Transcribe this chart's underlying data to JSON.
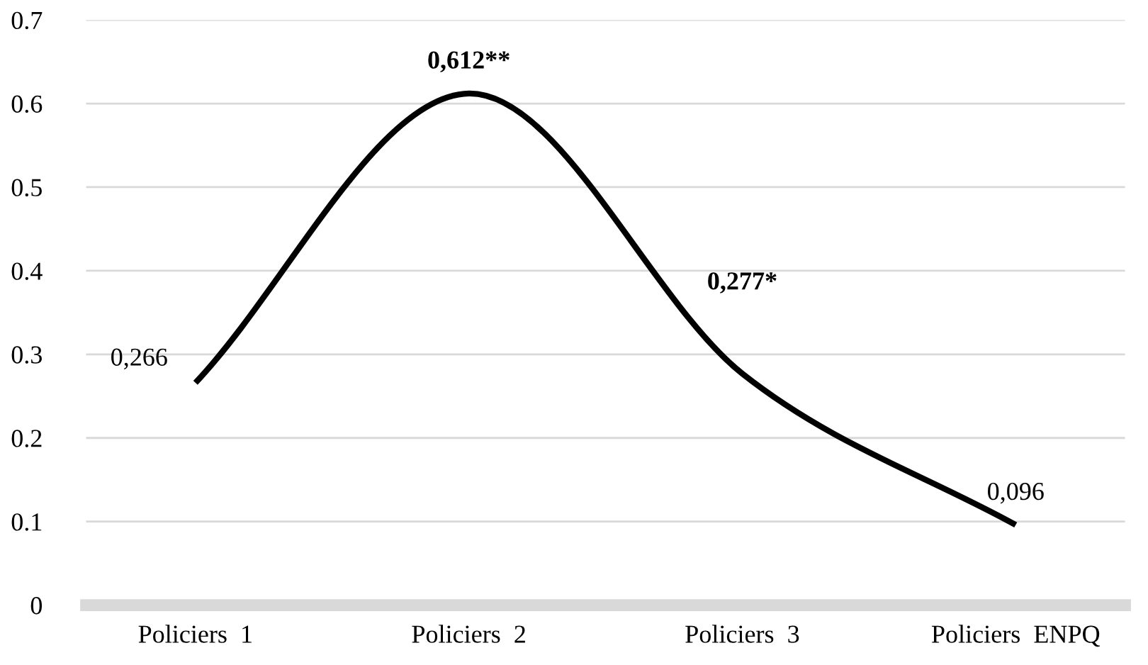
{
  "chart_data": {
    "type": "line",
    "categories": [
      "Policiers  1",
      "Policiers  2",
      "Policiers  3",
      "Policiers  ENPQ"
    ],
    "series": [
      {
        "color": "#000000",
        "values": [
          0.266,
          0.612,
          0.277,
          0.096
        ],
        "value_labels": [
          "0,266",
          "0,612**",
          "0,277*",
          "0,096"
        ]
      }
    ],
    "ylim": [
      0,
      0.7
    ],
    "yticks": [
      0,
      0.1,
      0.2,
      0.3,
      0.4,
      0.5,
      0.6,
      0.7
    ],
    "grid": "y",
    "marker": "none",
    "line_style": "solid",
    "legend": false
  }
}
